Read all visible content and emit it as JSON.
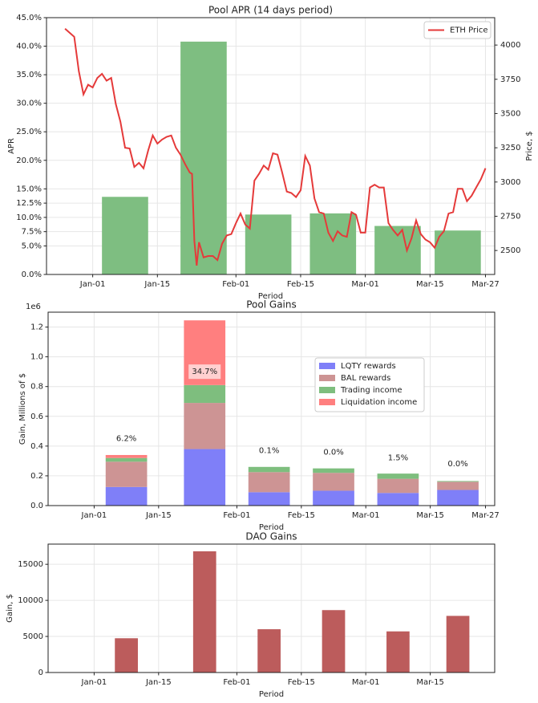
{
  "chart_data": [
    {
      "type": "bar+line",
      "title": "Pool APR (14 days period)",
      "xlabel": "Period",
      "ylabel": "APR",
      "ylabel_right": "Price, $",
      "x_tick_labels": [
        "Jan-01",
        "Jan-15",
        "Feb-01",
        "Feb-15",
        "Mar-01",
        "Mar-15",
        "Mar-27"
      ],
      "x_tick_days": [
        0,
        14,
        31,
        45,
        59,
        73,
        85
      ],
      "xlim_days": [
        -10,
        87
      ],
      "ylim": [
        0,
        0.45
      ],
      "y_ticks": [
        0,
        0.05,
        0.075,
        0.1,
        0.125,
        0.15,
        0.2,
        0.25,
        0.3,
        0.35,
        0.4,
        0.45
      ],
      "y_tick_labels": [
        "0.0%",
        "5.0%",
        "7.5%",
        "10.0%",
        "12.5%",
        "15.0%",
        "20.0%",
        "25.0%",
        "30.0%",
        "35.0%",
        "40.0%",
        "45.0%"
      ],
      "ylim_right": [
        2325,
        4200
      ],
      "y_ticks_right": [
        2500,
        2750,
        3000,
        3250,
        3500,
        3750,
        4000
      ],
      "y_tick_labels_right": [
        "2500",
        "2750",
        "3000",
        "3250",
        "3500",
        "3750",
        "4000"
      ],
      "grid": true,
      "legend": "top-right",
      "bar_color": "#7ebe81",
      "bar_series": {
        "x_center_days": [
          7,
          24,
          38,
          52,
          66,
          79
        ],
        "width_days": 10,
        "values": [
          0.136,
          0.408,
          0.105,
          0.107,
          0.085,
          0.077
        ]
      },
      "line_series": {
        "name": "ETH Price",
        "color": "#e53a3a",
        "x_days": [
          -6,
          -4,
          -3,
          -2,
          -1,
          0,
          1,
          2,
          3,
          4,
          5,
          6,
          7,
          8,
          9,
          10,
          11,
          12,
          13,
          14,
          15,
          16,
          17,
          18,
          19,
          20,
          21,
          21.5,
          22,
          22.5,
          23,
          24,
          25,
          26,
          27,
          28,
          29,
          30,
          31,
          32,
          33,
          34,
          35,
          36,
          37,
          38,
          39,
          40,
          41,
          42,
          43,
          44,
          45,
          46,
          47,
          48,
          49,
          50,
          51,
          52,
          53,
          54,
          55,
          56,
          57,
          58,
          59,
          60,
          61,
          62,
          63,
          64,
          65,
          66,
          67,
          68,
          69,
          70,
          71,
          72,
          73,
          74,
          75,
          76,
          77,
          78,
          79,
          80,
          81,
          82,
          83,
          84,
          85
        ],
        "values": [
          4120,
          4060,
          3810,
          3640,
          3710,
          3690,
          3760,
          3790,
          3740,
          3760,
          3570,
          3440,
          3250,
          3245,
          3110,
          3140,
          3100,
          3230,
          3340,
          3280,
          3310,
          3330,
          3340,
          3250,
          3200,
          3130,
          3070,
          3060,
          2570,
          2390,
          2560,
          2450,
          2460,
          2460,
          2430,
          2550,
          2610,
          2620,
          2700,
          2770,
          2690,
          2660,
          3010,
          3060,
          3120,
          3090,
          3210,
          3200,
          3070,
          2930,
          2920,
          2890,
          2940,
          3190,
          3120,
          2880,
          2780,
          2770,
          2630,
          2570,
          2640,
          2610,
          2600,
          2780,
          2760,
          2630,
          2630,
          2960,
          2980,
          2960,
          2960,
          2700,
          2650,
          2610,
          2650,
          2500,
          2590,
          2720,
          2620,
          2580,
          2560,
          2520,
          2600,
          2640,
          2770,
          2780,
          2950,
          2950,
          2860,
          2900,
          2960,
          3020,
          3100
        ]
      }
    },
    {
      "type": "stacked-bar",
      "title": "Pool Gains",
      "xlabel": "Period",
      "ylabel": "Gain, Millions of $",
      "offset_text": "1e6",
      "x_tick_labels": [
        "Jan-01",
        "Jan-15",
        "Feb-01",
        "Feb-15",
        "Mar-01",
        "Mar-15",
        "Mar-27"
      ],
      "x_tick_days": [
        0,
        14,
        31,
        45,
        59,
        73,
        85
      ],
      "xlim_days": [
        -10,
        87
      ],
      "ylim": [
        0,
        1.3
      ],
      "y_ticks": [
        0.0,
        0.2,
        0.4,
        0.6,
        0.8,
        1.0,
        1.2
      ],
      "y_tick_labels": [
        "0.0",
        "0.2",
        "0.4",
        "0.6",
        "0.8",
        "1.0",
        "1.2"
      ],
      "grid": true,
      "legend": "center-right",
      "x_center_days": [
        7,
        24,
        38,
        52,
        66,
        79
      ],
      "width_days": 9,
      "series": [
        {
          "name": "LQTY rewards",
          "color": "#7f7ff8",
          "values": [
            0.125,
            0.38,
            0.09,
            0.1,
            0.085,
            0.105
          ]
        },
        {
          "name": "BAL rewards",
          "color": "#cd9494",
          "values": [
            0.17,
            0.31,
            0.135,
            0.12,
            0.095,
            0.055
          ]
        },
        {
          "name": "Trading income",
          "color": "#7ebe7e",
          "values": [
            0.025,
            0.12,
            0.035,
            0.03,
            0.035,
            0.005
          ]
        },
        {
          "name": "Liquidation income",
          "color": "#ff7f7f",
          "values": [
            0.02,
            0.435,
            0.0,
            0.0,
            0.0,
            0.0
          ]
        }
      ],
      "annotations": [
        "6.2%",
        "34.7%",
        "0.1%",
        "0.0%",
        "1.5%",
        "0.0%"
      ],
      "annotation_y": [
        0.45,
        0.9,
        0.37,
        0.36,
        0.32,
        0.28
      ],
      "annotation_boxed": [
        false,
        true,
        false,
        false,
        false,
        false
      ]
    },
    {
      "type": "bar",
      "title": "DAO Gains",
      "xlabel": "Period",
      "ylabel": "Gain, $",
      "x_tick_labels": [
        "Jan-01",
        "Jan-15",
        "Feb-01",
        "Feb-15",
        "Mar-01",
        "Mar-15"
      ],
      "x_tick_days": [
        0,
        14,
        31,
        45,
        59,
        73
      ],
      "xlim_days": [
        -10,
        87
      ],
      "ylim": [
        0,
        17800
      ],
      "y_ticks": [
        0,
        5000,
        10000,
        15000
      ],
      "y_tick_labels": [
        "0",
        "5000",
        "10000",
        "15000"
      ],
      "grid": true,
      "bar_color": "#bc5c5c",
      "x_center_days": [
        7,
        24,
        38,
        52,
        66,
        79
      ],
      "width_days": 5,
      "values": [
        4750,
        16800,
        6000,
        8650,
        5700,
        7850
      ]
    }
  ]
}
